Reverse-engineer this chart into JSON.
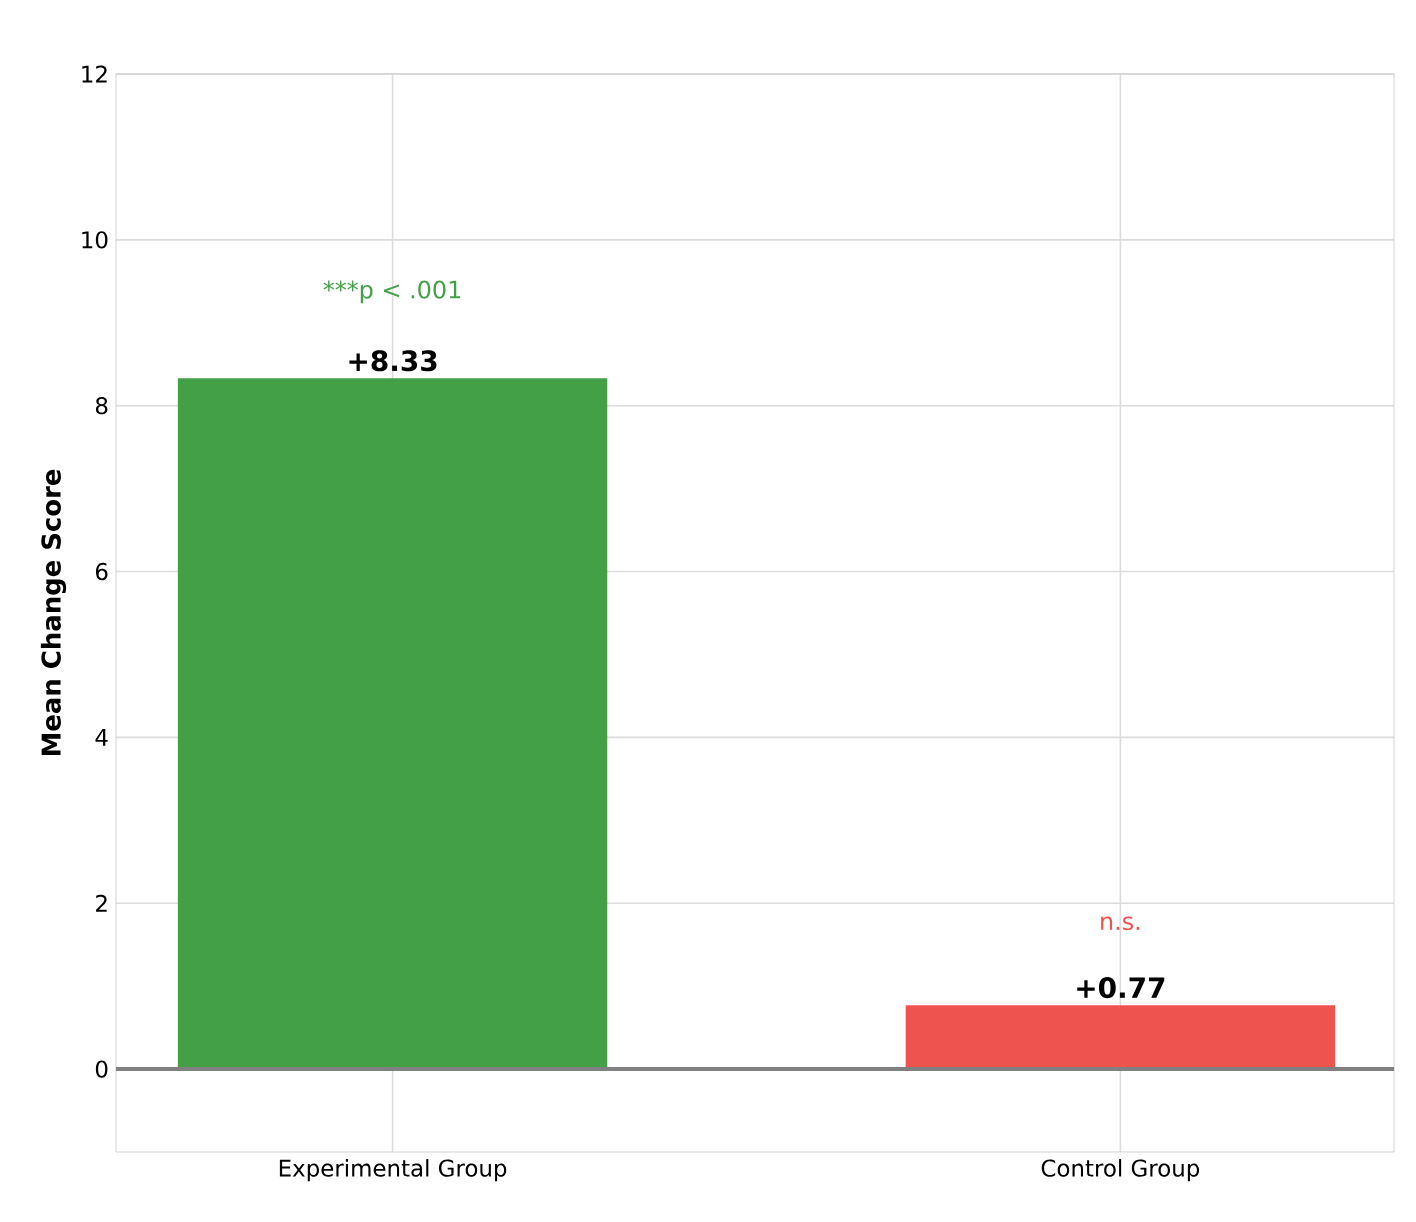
{
  "chart_data": {
    "type": "bar",
    "ylabel": "Mean Change Score",
    "categories": [
      "Experimental Group",
      "Control Group"
    ],
    "values": [
      8.33,
      0.77
    ],
    "value_labels": [
      "+8.33",
      "+0.77"
    ],
    "colors": [
      "#43a047",
      "#ef5350"
    ],
    "ylim": [
      -1,
      12
    ],
    "yticks": [
      0,
      2,
      4,
      6,
      8,
      10,
      12
    ],
    "grid": true,
    "ref_lines": [
      {
        "axis": "y",
        "value": 0,
        "color": "#808080"
      }
    ],
    "annotations": [
      "***p < .001",
      "n.s."
    ]
  }
}
